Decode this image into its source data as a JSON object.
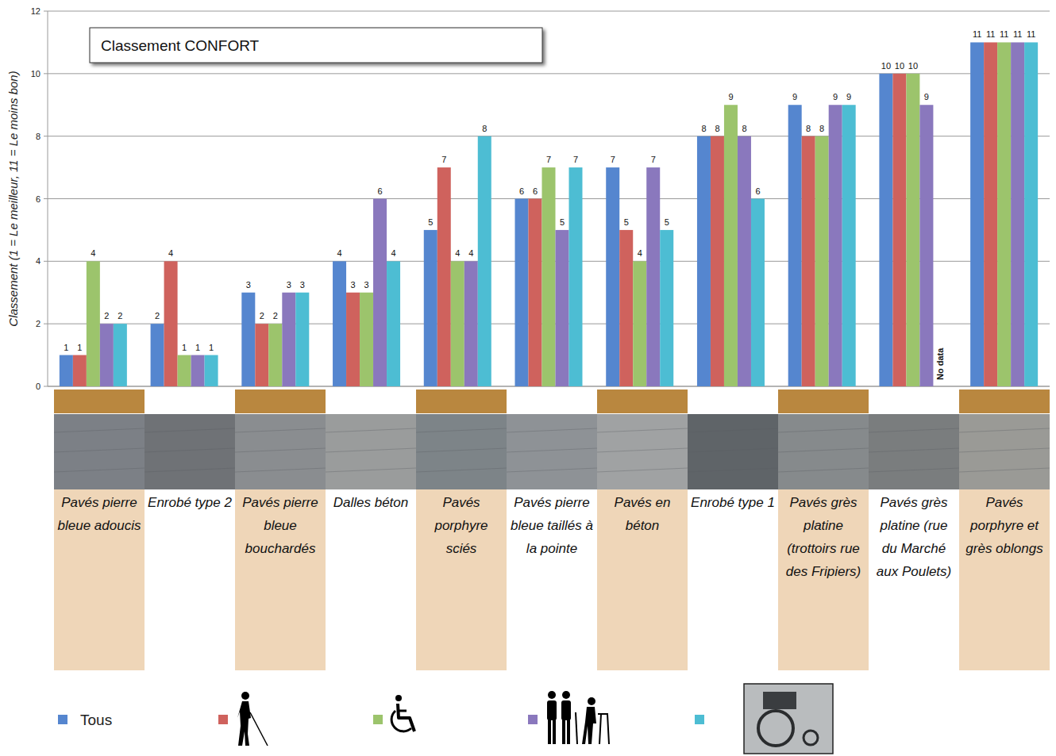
{
  "chart_data": {
    "type": "bar",
    "title": "Classement CONFORT",
    "y_label": "Classement (1 = Le meilleur, 11 = Le moins bon)",
    "categories": [
      "Pavés pierre bleue adoucis",
      "Enrobé type 2",
      "Pavés pierre bleue bouchardés",
      "Dalles béton",
      "Pavés porphyre sciés",
      "Pavés pierre bleue taillés à la pointe",
      "Pavés en béton",
      "Enrobé type 1",
      "Pavés grès platine (trottoirs rue des Fripiers)",
      "Pavés grès platine (rue du Marché aux Poulets)",
      "Pavés porphyre et grès oblongs"
    ],
    "series": [
      {
        "name": "Tous",
        "color": "#5586cf",
        "values": [
          1,
          2,
          3,
          4,
          5,
          6,
          7,
          8,
          9,
          10,
          11
        ]
      },
      {
        "color": "#cf625d",
        "values": [
          1,
          4,
          2,
          3,
          7,
          6,
          5,
          8,
          8,
          10,
          11
        ]
      },
      {
        "color": "#9cc46c",
        "values": [
          4,
          1,
          2,
          3,
          4,
          7,
          4,
          9,
          8,
          10,
          11
        ]
      },
      {
        "color": "#8a78bd",
        "values": [
          2,
          1,
          3,
          6,
          4,
          5,
          7,
          8,
          9,
          9,
          11
        ]
      },
      {
        "color": "#4dbdd3",
        "values": [
          2,
          1,
          3,
          4,
          8,
          7,
          5,
          6,
          9,
          null,
          11
        ]
      }
    ],
    "annotations": [
      {
        "text": "No data"
      }
    ],
    "ylim": [
      0,
      12
    ],
    "yticks": [
      0,
      2,
      4,
      6,
      8,
      10,
      12
    ],
    "grid": true,
    "data_labels": true,
    "legend": "bottom"
  }
}
